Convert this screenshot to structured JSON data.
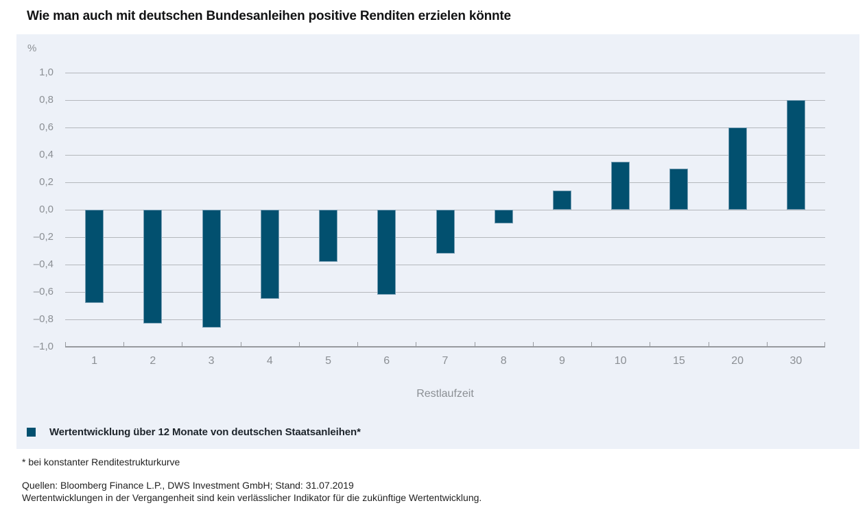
{
  "title": "Wie man auch mit deutschen Bundesanleihen positive Renditen erzielen könnte",
  "chart_data": {
    "type": "bar",
    "title": "Wie man auch mit deutschen Bundesanleihen positive Renditen erzielen könnte",
    "unit": "%",
    "categories": [
      "1",
      "2",
      "3",
      "4",
      "5",
      "6",
      "7",
      "8",
      "9",
      "10",
      "15",
      "20",
      "30"
    ],
    "values": [
      -0.68,
      -0.83,
      -0.86,
      -0.65,
      -0.38,
      -0.62,
      -0.32,
      -0.1,
      0.14,
      0.35,
      0.3,
      0.6,
      0.8
    ],
    "series_name": "Wertentwicklung über 12 Monate von deutschen Staatsanleihen*",
    "xlabel": "Restlaufzeit",
    "ylabel": "%",
    "ylim": [
      -1.0,
      1.0
    ],
    "ytick_values": [
      1.0,
      0.8,
      0.6,
      0.4,
      0.2,
      0.0,
      -0.2,
      -0.4,
      -0.6,
      -0.8,
      -1.0
    ],
    "ytick_labels": [
      "1,0",
      "0,8",
      "0,6",
      "0,4",
      "0,2",
      "0,0",
      "–0,2",
      "–0,4",
      "–0,6",
      "–0,8",
      "–1,0"
    ],
    "grid": true,
    "legend_position": "bottom-left",
    "bar_color": "#02506F",
    "background_color": "#edf1f8"
  },
  "legend": {
    "label": "Wertentwicklung über 12 Monate von deutschen Staatsanleihen*",
    "swatch_color": "#02506F"
  },
  "footnote": "* bei konstanter Renditestrukturkurve",
  "footer": {
    "sources": "Quellen: Bloomberg Finance L.P., DWS Investment GmbH; Stand: 31.07.2019",
    "disclaimer": "Wertentwicklungen in der Vergangenheit sind kein verlässlicher Indikator für die zukünftige Wertentwicklung."
  },
  "colors": {
    "bar": "#02506F",
    "bar_stroke": "#7ba0b5",
    "panel_background": "#edf1f8",
    "gridline": "#b4b7bc",
    "axis": "#96999e",
    "tick_text": "#8b8f94",
    "title_text": "#121314",
    "legend_text": "#1d242b"
  }
}
